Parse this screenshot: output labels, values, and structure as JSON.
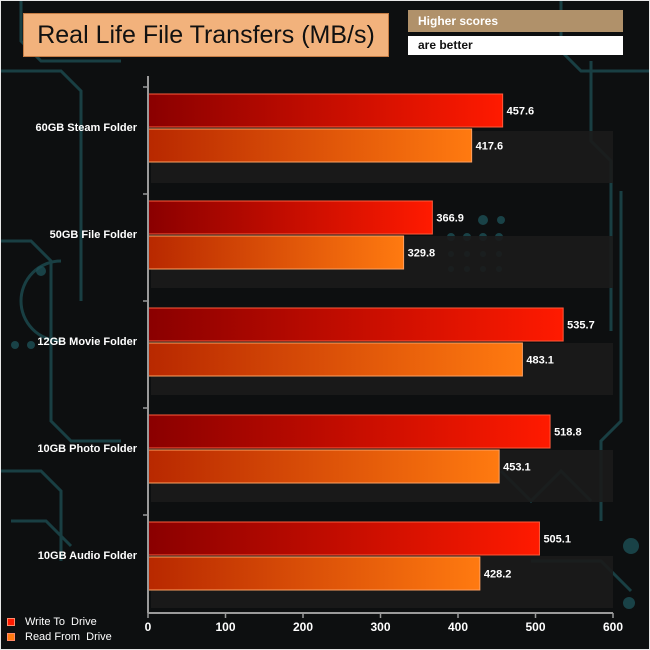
{
  "header": {
    "title": "Real Life File Transfers (MB/s)",
    "note_line1": "Higher scores",
    "note_line2": "are better"
  },
  "colors": {
    "write_dark": "#8a0000",
    "write_light": "#ff1a00",
    "read_dark": "#b82800",
    "read_light": "#ff7a10",
    "axis": "#9a9a9a",
    "label": "#ffffff"
  },
  "chart_data": {
    "type": "bar",
    "orientation": "horizontal",
    "title": "Real Life File Transfers (MB/s)",
    "categories": [
      "60GB Steam Folder",
      "50GB File Folder",
      "12GB Movie Folder",
      "10GB Photo Folder",
      "10GB Audio Folder"
    ],
    "series": [
      {
        "name": "Write To  Drive",
        "values": [
          457.6,
          366.9,
          535.7,
          518.8,
          505.1
        ]
      },
      {
        "name": "Read From  Drive",
        "values": [
          417.6,
          329.8,
          483.1,
          453.1,
          428.2
        ]
      }
    ],
    "xlim": [
      0,
      600
    ],
    "xticks": [
      0,
      100,
      200,
      300,
      400,
      500,
      600
    ],
    "grid": false,
    "legend_position": "bottom-left"
  }
}
